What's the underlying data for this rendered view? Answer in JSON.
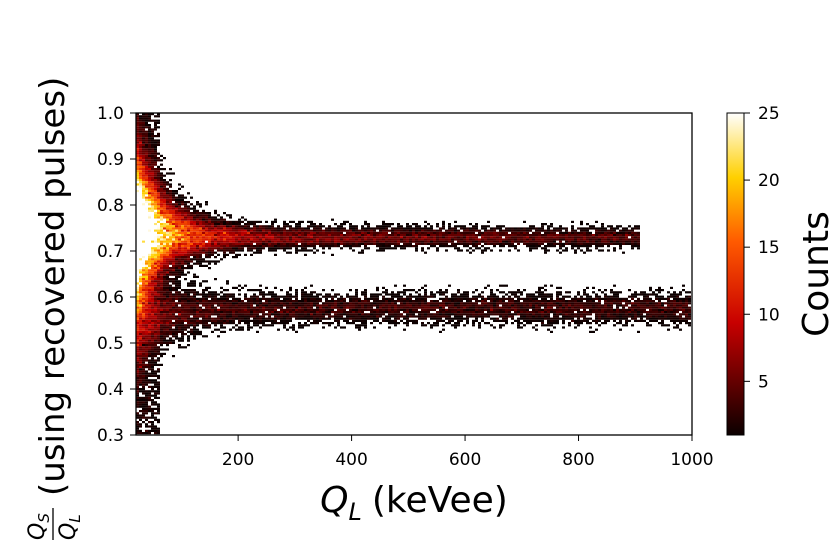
{
  "chart_data": {
    "type": "heatmap",
    "title": "",
    "xlabel": {
      "symbol": "Q",
      "subscript": "L",
      "unit": "(keVee)"
    },
    "ylabel": {
      "numerator": "Q",
      "numerator_sub": "S",
      "denominator": "Q",
      "denominator_sub": "L",
      "text": "(using recovered pulses)"
    },
    "xlim": [
      20,
      1000
    ],
    "ylim": [
      0.3,
      1.0
    ],
    "xticks": [
      200,
      400,
      600,
      800,
      1000
    ],
    "yticks": [
      0.3,
      0.4,
      0.5,
      0.6,
      0.7,
      0.8,
      0.9,
      1.0
    ],
    "ytick_labels": [
      "0.3",
      "0.4",
      "0.5",
      "0.6",
      "0.7",
      "0.8",
      "0.9",
      "1.0"
    ],
    "colormap": "hot",
    "colorbar": {
      "label": "Counts",
      "range": [
        1,
        25
      ],
      "ticks": [
        5,
        10,
        15,
        20,
        25
      ]
    },
    "bands": [
      {
        "name": "upper band",
        "y_center_at_high_x": 0.73,
        "x_extent": [
          20,
          910
        ],
        "peak_counts": 25
      },
      {
        "name": "lower band",
        "y_center_at_high_x": 0.58,
        "x_extent": [
          20,
          1000
        ],
        "peak_counts": 15
      }
    ]
  }
}
